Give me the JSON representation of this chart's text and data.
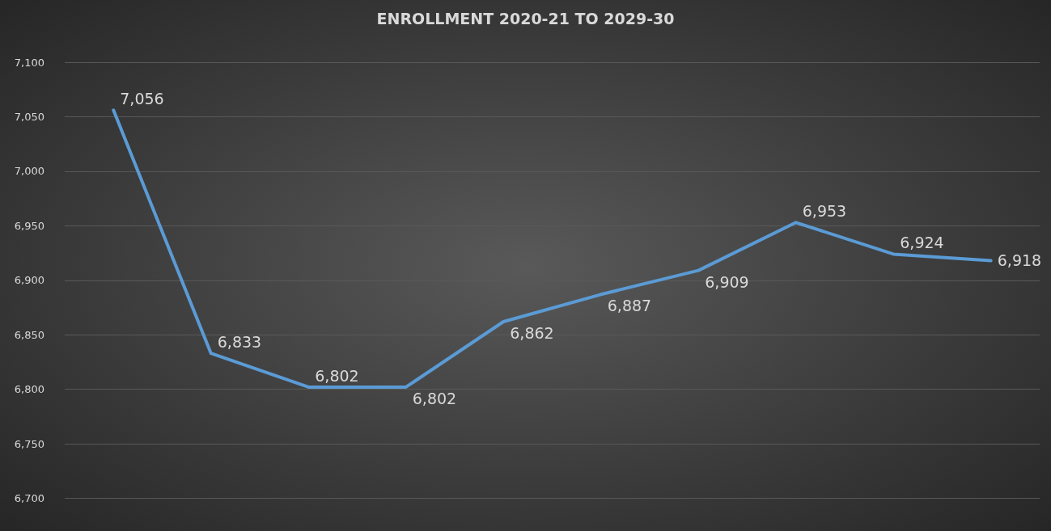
{
  "chart_data": {
    "type": "line",
    "title": "ENROLLMENT 2020-21 TO 2029-30",
    "categories": [
      null,
      null,
      null,
      null,
      null,
      null,
      null,
      null,
      null,
      null
    ],
    "series": [
      {
        "color": "#5b9bd5",
        "values": [
          7056,
          6833,
          6802,
          6802,
          6862,
          6887,
          6909,
          6953,
          6924,
          6918
        ],
        "value_labels": [
          "7,056",
          "6,833",
          "6,802",
          "6,802",
          "6,862",
          "6,887",
          "6,909",
          "6,953",
          "6,924",
          "6,918"
        ]
      }
    ],
    "ylim": [
      6670,
      7100
    ],
    "yticks": [
      {
        "value": 6700,
        "label": "6,700"
      },
      {
        "value": 6750,
        "label": "6,750"
      },
      {
        "value": 6800,
        "label": "6,800"
      },
      {
        "value": 6850,
        "label": "6,850"
      },
      {
        "value": 6900,
        "label": "6,900"
      },
      {
        "value": 6950,
        "label": "6,950"
      },
      {
        "value": 7000,
        "label": "7,000"
      },
      {
        "value": 7050,
        "label": "7,050"
      },
      {
        "value": 7100,
        "label": "7,100"
      }
    ],
    "grid": "y",
    "marker": "none",
    "line_style": "solid",
    "tick_labels": "y"
  }
}
